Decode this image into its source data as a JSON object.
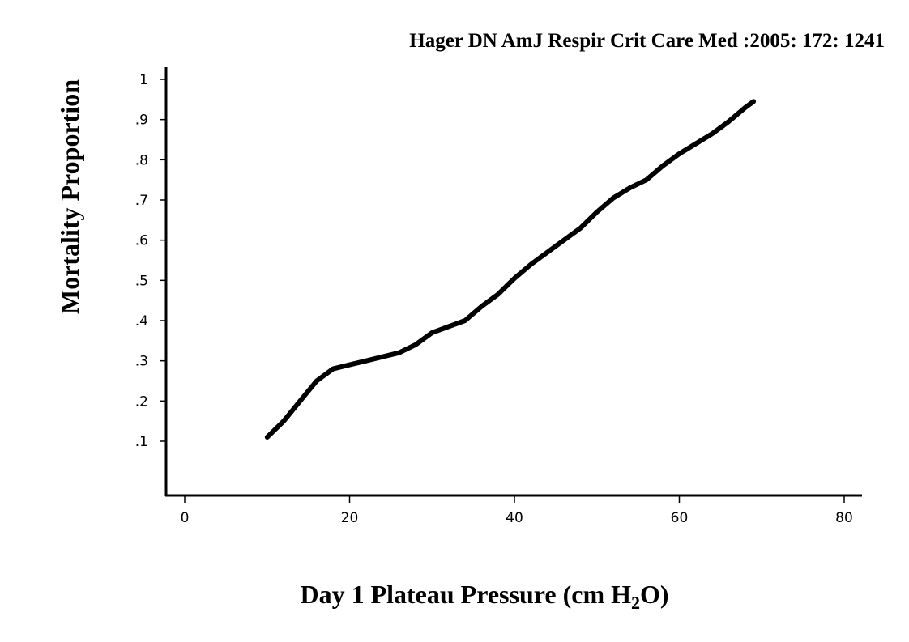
{
  "citation": "Hager DN AmJ Respir Crit Care Med :2005: 172: 1241",
  "chart_data": {
    "type": "line",
    "title": "",
    "xlabel": {
      "main": "Day 1 Plateau Pressure (cm H",
      "subscript": "2",
      "suffix": "O)"
    },
    "ylabel": "Mortality Proportion",
    "xlim": [
      0,
      80
    ],
    "ylim": [
      0,
      1
    ],
    "x_ticks": [
      {
        "value": 0,
        "label": "0"
      },
      {
        "value": 20,
        "label": "20"
      },
      {
        "value": 40,
        "label": "40"
      },
      {
        "value": 60,
        "label": "60"
      },
      {
        "value": 80,
        "label": "80"
      }
    ],
    "y_ticks": [
      {
        "value": 0.1,
        "label": ".1"
      },
      {
        "value": 0.2,
        "label": ".2"
      },
      {
        "value": 0.3,
        "label": ".3"
      },
      {
        "value": 0.4,
        "label": ".4"
      },
      {
        "value": 0.5,
        "label": ".5"
      },
      {
        "value": 0.6,
        "label": ".6"
      },
      {
        "value": 0.7,
        "label": ".7"
      },
      {
        "value": 0.8,
        "label": ".8"
      },
      {
        "value": 0.9,
        "label": ".9"
      },
      {
        "value": 1.0,
        "label": "1"
      }
    ],
    "grid": false,
    "series": [
      {
        "color": "#000000",
        "points": [
          {
            "x": 10,
            "y": 0.11
          },
          {
            "x": 12,
            "y": 0.15
          },
          {
            "x": 14,
            "y": 0.2
          },
          {
            "x": 16,
            "y": 0.25
          },
          {
            "x": 18,
            "y": 0.28
          },
          {
            "x": 20,
            "y": 0.29
          },
          {
            "x": 22,
            "y": 0.3
          },
          {
            "x": 24,
            "y": 0.31
          },
          {
            "x": 26,
            "y": 0.32
          },
          {
            "x": 28,
            "y": 0.34
          },
          {
            "x": 30,
            "y": 0.37
          },
          {
            "x": 32,
            "y": 0.385
          },
          {
            "x": 34,
            "y": 0.4
          },
          {
            "x": 36,
            "y": 0.435
          },
          {
            "x": 38,
            "y": 0.465
          },
          {
            "x": 40,
            "y": 0.505
          },
          {
            "x": 42,
            "y": 0.54
          },
          {
            "x": 44,
            "y": 0.57
          },
          {
            "x": 46,
            "y": 0.6
          },
          {
            "x": 48,
            "y": 0.63
          },
          {
            "x": 50,
            "y": 0.67
          },
          {
            "x": 52,
            "y": 0.705
          },
          {
            "x": 54,
            "y": 0.73
          },
          {
            "x": 56,
            "y": 0.75
          },
          {
            "x": 58,
            "y": 0.785
          },
          {
            "x": 60,
            "y": 0.815
          },
          {
            "x": 62,
            "y": 0.84
          },
          {
            "x": 64,
            "y": 0.865
          },
          {
            "x": 66,
            "y": 0.895
          },
          {
            "x": 68,
            "y": 0.93
          },
          {
            "x": 69,
            "y": 0.945
          }
        ]
      }
    ]
  }
}
